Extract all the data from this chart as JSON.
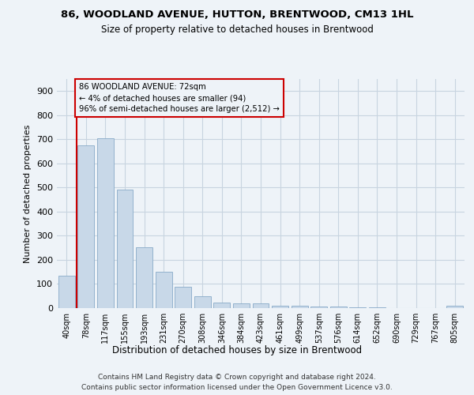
{
  "title": "86, WOODLAND AVENUE, HUTTON, BRENTWOOD, CM13 1HL",
  "subtitle": "Size of property relative to detached houses in Brentwood",
  "xlabel": "Distribution of detached houses by size in Brentwood",
  "ylabel": "Number of detached properties",
  "bar_fill": "#c8d8e8",
  "bar_edge": "#88aac8",
  "categories": [
    "40sqm",
    "78sqm",
    "117sqm",
    "155sqm",
    "193sqm",
    "231sqm",
    "270sqm",
    "308sqm",
    "346sqm",
    "384sqm",
    "423sqm",
    "461sqm",
    "499sqm",
    "537sqm",
    "576sqm",
    "614sqm",
    "652sqm",
    "690sqm",
    "729sqm",
    "767sqm",
    "805sqm"
  ],
  "values": [
    135,
    675,
    705,
    493,
    252,
    150,
    88,
    50,
    22,
    19,
    19,
    11,
    10,
    8,
    5,
    3,
    2,
    1,
    1,
    1,
    10
  ],
  "ylim": [
    0,
    950
  ],
  "yticks": [
    0,
    100,
    200,
    300,
    400,
    500,
    600,
    700,
    800,
    900
  ],
  "vline_color": "#cc0000",
  "vline_x": 0.5,
  "annotation_line1": "86 WOODLAND AVENUE: 72sqm",
  "annotation_line2": "← 4% of detached houses are smaller (94)",
  "annotation_line3": "96% of semi-detached houses are larger (2,512) →",
  "annotation_box_edge": "#cc0000",
  "bg_color": "#eef3f8",
  "grid_color": "#c8d4e0",
  "footer1": "Contains HM Land Registry data © Crown copyright and database right 2024.",
  "footer2": "Contains public sector information licensed under the Open Government Licence v3.0."
}
